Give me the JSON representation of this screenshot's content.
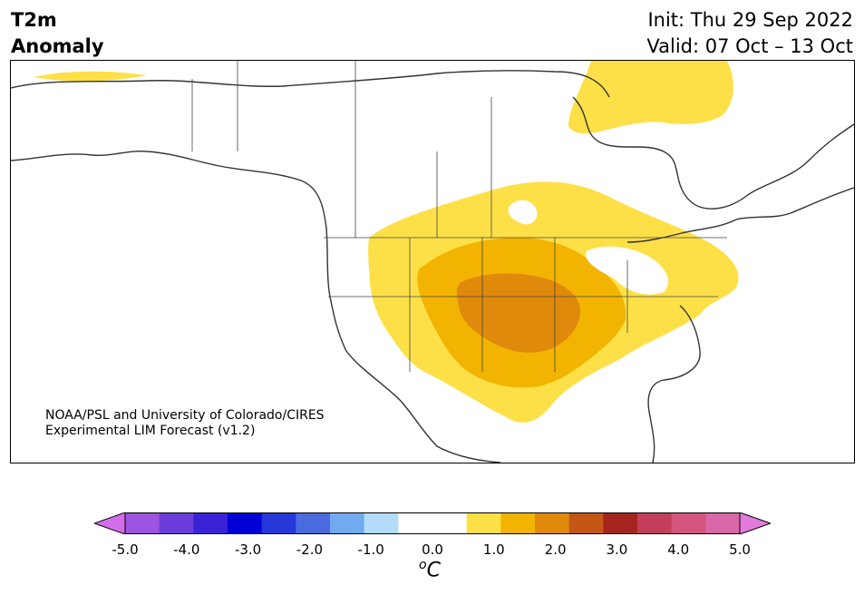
{
  "title": {
    "line1": "T2m",
    "line2": "Anomaly"
  },
  "init": "Init: Thu 29 Sep 2022",
  "valid": "Valid: 07 Oct – 13 Oct",
  "credit": {
    "line1": "NOAA/PSL and University of Colorado/CIRES",
    "line2": "Experimental LIM Forecast (v1.2)"
  },
  "colorbar": {
    "colors": [
      "#d46ee8",
      "#9d54e0",
      "#6a3ddb",
      "#3a22d6",
      "#0000d6",
      "#2538d9",
      "#4a6ae0",
      "#72aaf0",
      "#b2dcf8",
      "#ffffff",
      "#ffffff",
      "#fde047",
      "#f2b400",
      "#e08a0c",
      "#c45716",
      "#a6241f",
      "#c43e5c",
      "#d4557d",
      "#d868a8",
      "#e27bd9"
    ],
    "tick_labels": [
      "-5.0",
      "-4.0",
      "-3.0",
      "-2.0",
      "-1.0",
      "0.0",
      "1.0",
      "2.0",
      "3.0",
      "4.0",
      "5.0"
    ],
    "unit_symbol": "o",
    "unit_letter": "C"
  }
}
